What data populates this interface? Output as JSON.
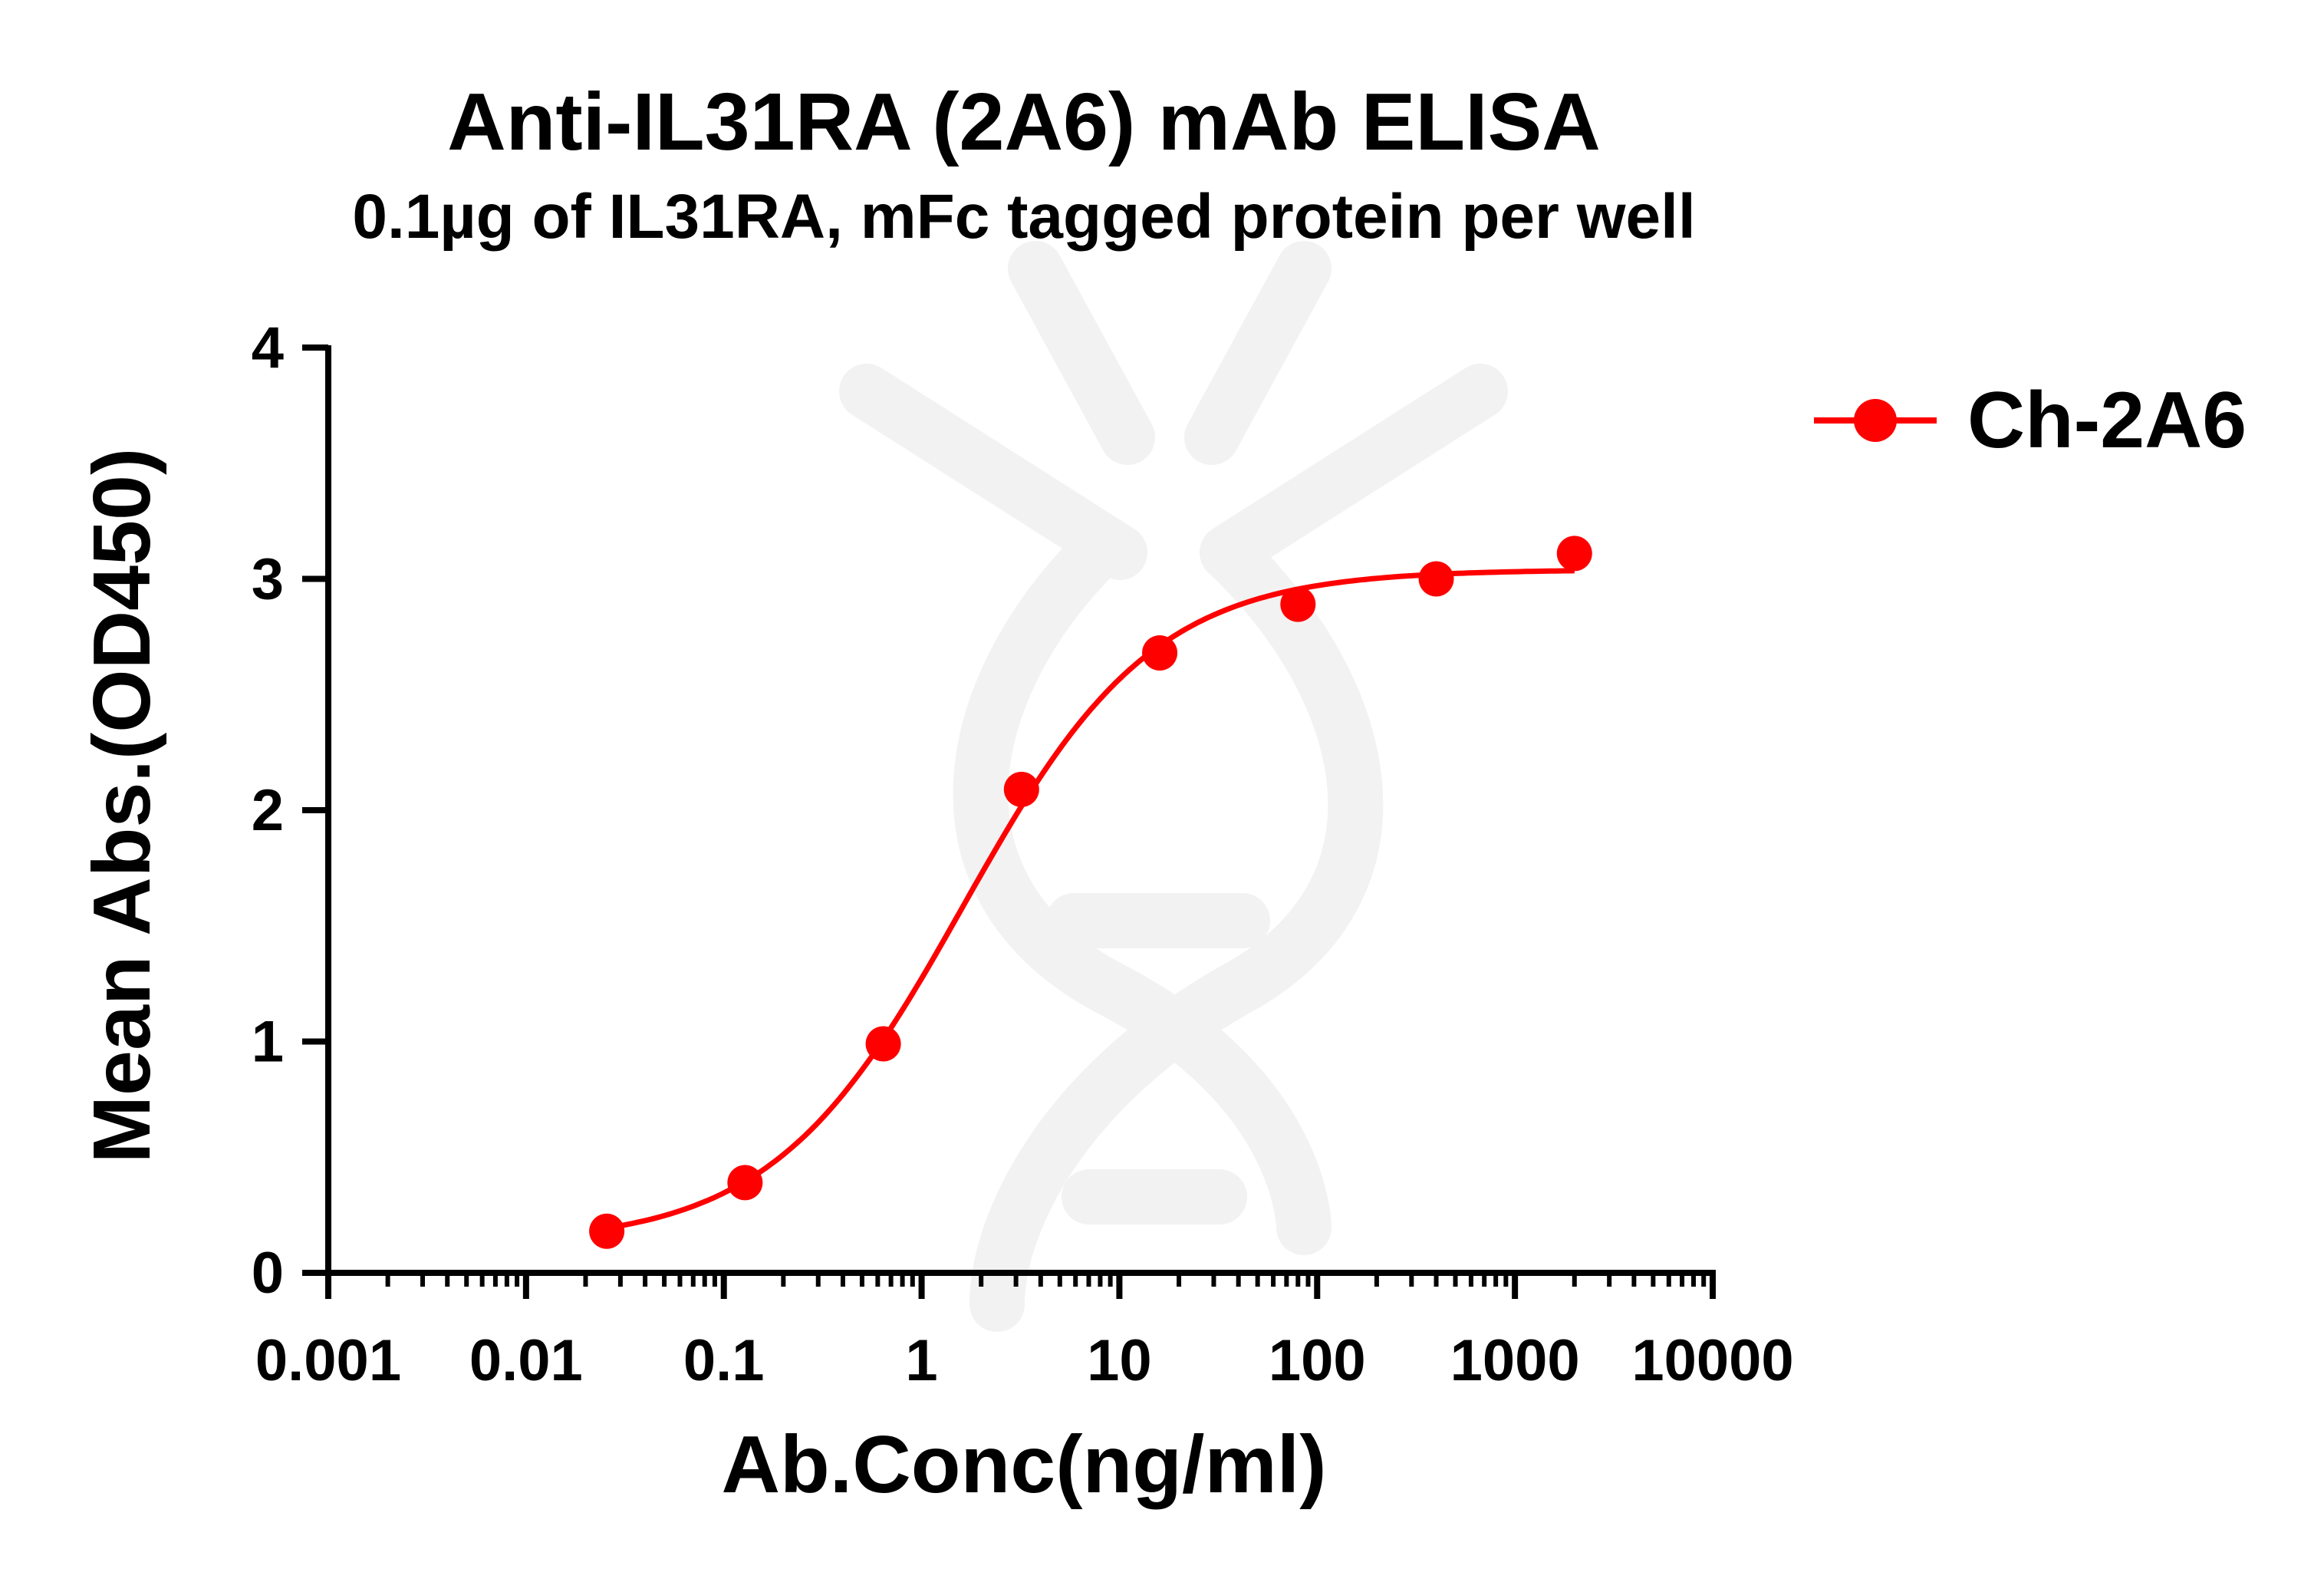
{
  "chart_data": {
    "type": "scatter",
    "title": "Anti-IL31RA (2A6) mAb ELISA",
    "subtitle": "0.1µg of IL31RA, mFc tagged protein per well",
    "xlabel": "Ab.Conc(ng/ml)",
    "ylabel": "Mean Abs.(OD450)",
    "x_scale": "log",
    "xlim": [
      0.001,
      10000
    ],
    "ylim": [
      0,
      4
    ],
    "x_ticks": [
      0.001,
      0.01,
      0.1,
      1,
      10,
      100,
      1000,
      10000
    ],
    "x_tick_labels": [
      "0.001",
      "0.01",
      "0.1",
      "1",
      "10",
      "100",
      "1000",
      "10000"
    ],
    "y_ticks": [
      0,
      1,
      2,
      3,
      4
    ],
    "y_tick_labels": [
      "0",
      "1",
      "2",
      "3",
      "4"
    ],
    "grid": false,
    "legend_position": "top-right",
    "series": [
      {
        "name": "Ch-2A6",
        "color": "#ff0000",
        "marker": "circle",
        "fit": "4PL sigmoid curve",
        "x": [
          0.0256,
          0.128,
          0.64,
          3.2,
          16,
          80,
          400,
          2000
        ],
        "y": [
          0.18,
          0.39,
          0.99,
          2.09,
          2.68,
          2.89,
          3.0,
          3.11
        ]
      }
    ]
  }
}
